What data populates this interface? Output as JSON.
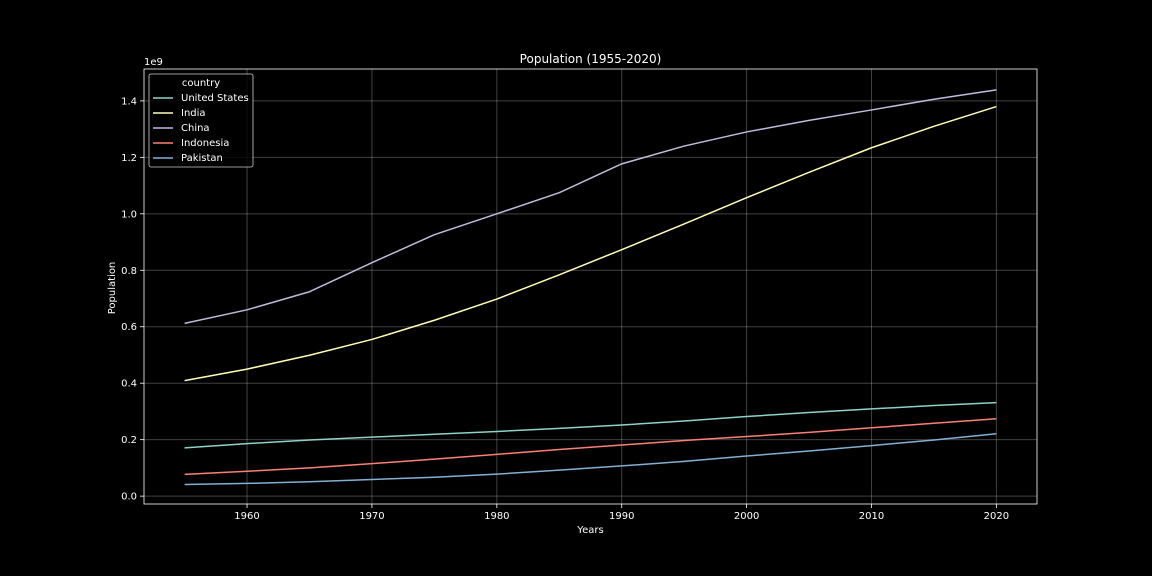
{
  "chart_data": {
    "type": "line",
    "title": "Population (1955-2020)",
    "xlabel": "Years",
    "ylabel": "Population",
    "y_offset_label": "1e9",
    "legend_title": "country",
    "legend_position": "top-left",
    "grid": true,
    "xlim": [
      1951.75,
      2023.25
    ],
    "ylim": [
      -0.0279,
      1.513
    ],
    "y_unit_scale": 1000000000,
    "x_ticks": [
      1960,
      1970,
      1980,
      1990,
      2000,
      2010,
      2020
    ],
    "y_ticks": [
      0.0,
      0.2,
      0.4,
      0.6,
      0.8,
      1.0,
      1.2,
      1.4
    ],
    "y_tick_labels": [
      "0.0",
      "0.2",
      "0.4",
      "0.6",
      "0.8",
      "1.0",
      "1.2",
      "1.4"
    ],
    "x": [
      1955,
      1960,
      1965,
      1970,
      1975,
      1980,
      1985,
      1990,
      1995,
      2000,
      2005,
      2010,
      2015,
      2020
    ],
    "series": [
      {
        "name": "United States",
        "color": "#8dd3c7",
        "values": [
          0.171,
          0.186,
          0.199,
          0.209,
          0.219,
          0.229,
          0.24,
          0.252,
          0.266,
          0.282,
          0.296,
          0.309,
          0.321,
          0.331
        ]
      },
      {
        "name": "India",
        "color": "#feffb3",
        "values": [
          0.409,
          0.45,
          0.499,
          0.555,
          0.623,
          0.698,
          0.784,
          0.873,
          0.964,
          1.057,
          1.147,
          1.234,
          1.31,
          1.38
        ]
      },
      {
        "name": "China",
        "color": "#bfbbd9",
        "values": [
          0.612,
          0.66,
          0.724,
          0.827,
          0.926,
          1.0,
          1.075,
          1.177,
          1.24,
          1.29,
          1.331,
          1.368,
          1.406,
          1.439
        ]
      },
      {
        "name": "Indonesia",
        "color": "#fa8174",
        "values": [
          0.077,
          0.088,
          0.1,
          0.115,
          0.131,
          0.148,
          0.165,
          0.181,
          0.197,
          0.211,
          0.226,
          0.242,
          0.258,
          0.274
        ]
      },
      {
        "name": "Pakistan",
        "color": "#81b1d2",
        "values": [
          0.041,
          0.045,
          0.051,
          0.059,
          0.067,
          0.078,
          0.092,
          0.107,
          0.123,
          0.142,
          0.16,
          0.179,
          0.199,
          0.221
        ]
      }
    ]
  }
}
